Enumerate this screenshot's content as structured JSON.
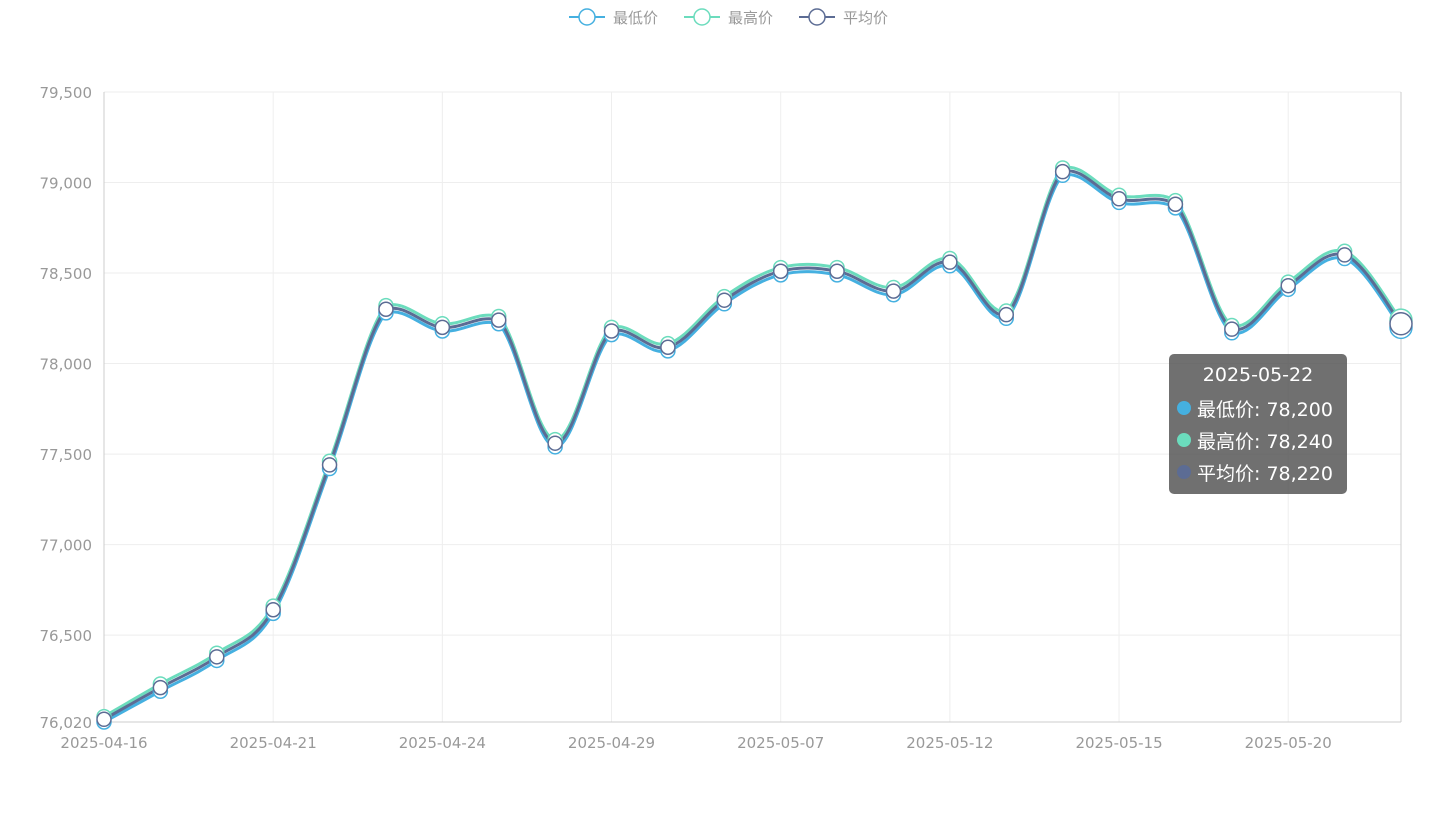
{
  "chart_data": {
    "type": "line",
    "x": [
      "2025-04-16",
      "2025-04-17",
      "2025-04-18",
      "2025-04-21",
      "2025-04-22",
      "2025-04-23",
      "2025-04-24",
      "2025-04-25",
      "2025-04-28",
      "2025-04-29",
      "2025-04-30",
      "2025-05-06",
      "2025-05-07",
      "2025-05-08",
      "2025-05-09",
      "2025-05-12",
      "2025-05-13",
      "2025-05-14",
      "2025-05-15",
      "2025-05-16",
      "2025-05-19",
      "2025-05-20",
      "2025-05-21",
      "2025-05-22"
    ],
    "series": [
      {
        "name": "最低价",
        "color": "#45b0e0",
        "values": [
          76020,
          76190,
          76360,
          76620,
          77420,
          78280,
          78180,
          78220,
          77540,
          78160,
          78070,
          78330,
          78490,
          78490,
          78380,
          78540,
          78250,
          79040,
          78890,
          78860,
          78170,
          78410,
          78580,
          78200
        ]
      },
      {
        "name": "最高价",
        "color": "#6bdcbd",
        "values": [
          76050,
          76230,
          76400,
          76660,
          77460,
          78320,
          78220,
          78260,
          77580,
          78200,
          78110,
          78370,
          78530,
          78530,
          78420,
          78580,
          78290,
          79080,
          78930,
          78900,
          78210,
          78450,
          78620,
          78240
        ]
      },
      {
        "name": "平均价",
        "color": "#5c6c94",
        "values": [
          76035,
          76210,
          76380,
          76640,
          77440,
          78300,
          78200,
          78240,
          77560,
          78180,
          78090,
          78350,
          78510,
          78510,
          78400,
          78560,
          78270,
          79060,
          78910,
          78880,
          78190,
          78430,
          78600,
          78220
        ]
      }
    ],
    "x_tick_labels": [
      "2025-04-16",
      "2025-04-21",
      "2025-04-24",
      "2025-04-29",
      "2025-05-07",
      "2025-05-12",
      "2025-05-15",
      "2025-05-20"
    ],
    "y_tick_labels": [
      "79,500",
      "79,000",
      "78,500",
      "78,000",
      "77,500",
      "77,000",
      "76,500",
      "76,020"
    ],
    "y_ticks": [
      79500,
      79000,
      78500,
      78000,
      77500,
      77000,
      76500,
      76020
    ],
    "ylim": [
      76020,
      79500
    ],
    "grid": true,
    "legend_position": "top-center",
    "axis_color": "#cccccc",
    "grid_color": "#eeeeee",
    "label_color": "#999999"
  },
  "legend": [
    {
      "label": "最低价",
      "color": "#45b0e0"
    },
    {
      "label": "最高价",
      "color": "#6bdcbd"
    },
    {
      "label": "平均价",
      "color": "#5c6c94"
    }
  ],
  "tooltip": {
    "title": "2025-05-22",
    "rows": [
      {
        "text": "最低价: 78,200",
        "color": "#45b0e0"
      },
      {
        "text": "最高价: 78,240",
        "color": "#6bdcbd"
      },
      {
        "text": "平均价: 78,220",
        "color": "#5c6c94"
      }
    ]
  }
}
